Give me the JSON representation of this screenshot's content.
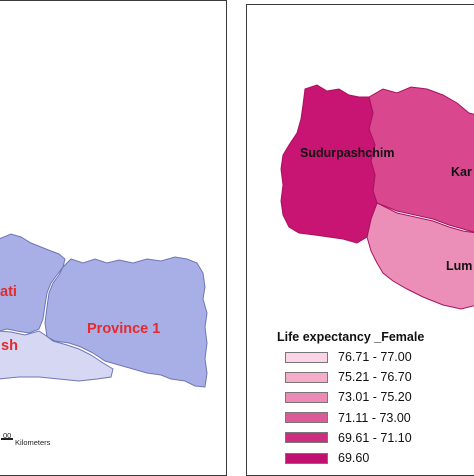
{
  "left_map": {
    "labels": {
      "province_1": "Province 1",
      "bagmati_partial": "ati",
      "madhesh_partial": "sh"
    },
    "scale_bar": {
      "number": "00",
      "unit": "Kilometers"
    },
    "colors": {
      "province_fill": "#a8aee6",
      "province_stroke": "#6f76b6",
      "madhesh_fill": "#d5d7f3",
      "label_red": "#e32b2b"
    }
  },
  "right_map": {
    "labels": {
      "sudurpashchim": "Sudurpashchim",
      "karnali_partial": "Kar",
      "lumbini_partial": "Lum"
    },
    "colors": {
      "sudurpashchim_fill": "#c81473",
      "karnali_fill": "#d9478f",
      "lumbini_fill": "#eb8fb8",
      "stroke": "#a8125f"
    }
  },
  "legend": {
    "title": "Life expectancy _Female",
    "items": [
      {
        "label": "76.71 - 77.00",
        "color": "#fbd3e6"
      },
      {
        "label": "75.21 - 76.70",
        "color": "#f4acc9"
      },
      {
        "label": "73.01 - 75.20",
        "color": "#ec89b4"
      },
      {
        "label": "71.11 - 73.00",
        "color": "#dc5a98"
      },
      {
        "label": "69.61 - 71.10",
        "color": "#cc2f80"
      },
      {
        "label": "69.60",
        "color": "#c01070"
      }
    ]
  }
}
